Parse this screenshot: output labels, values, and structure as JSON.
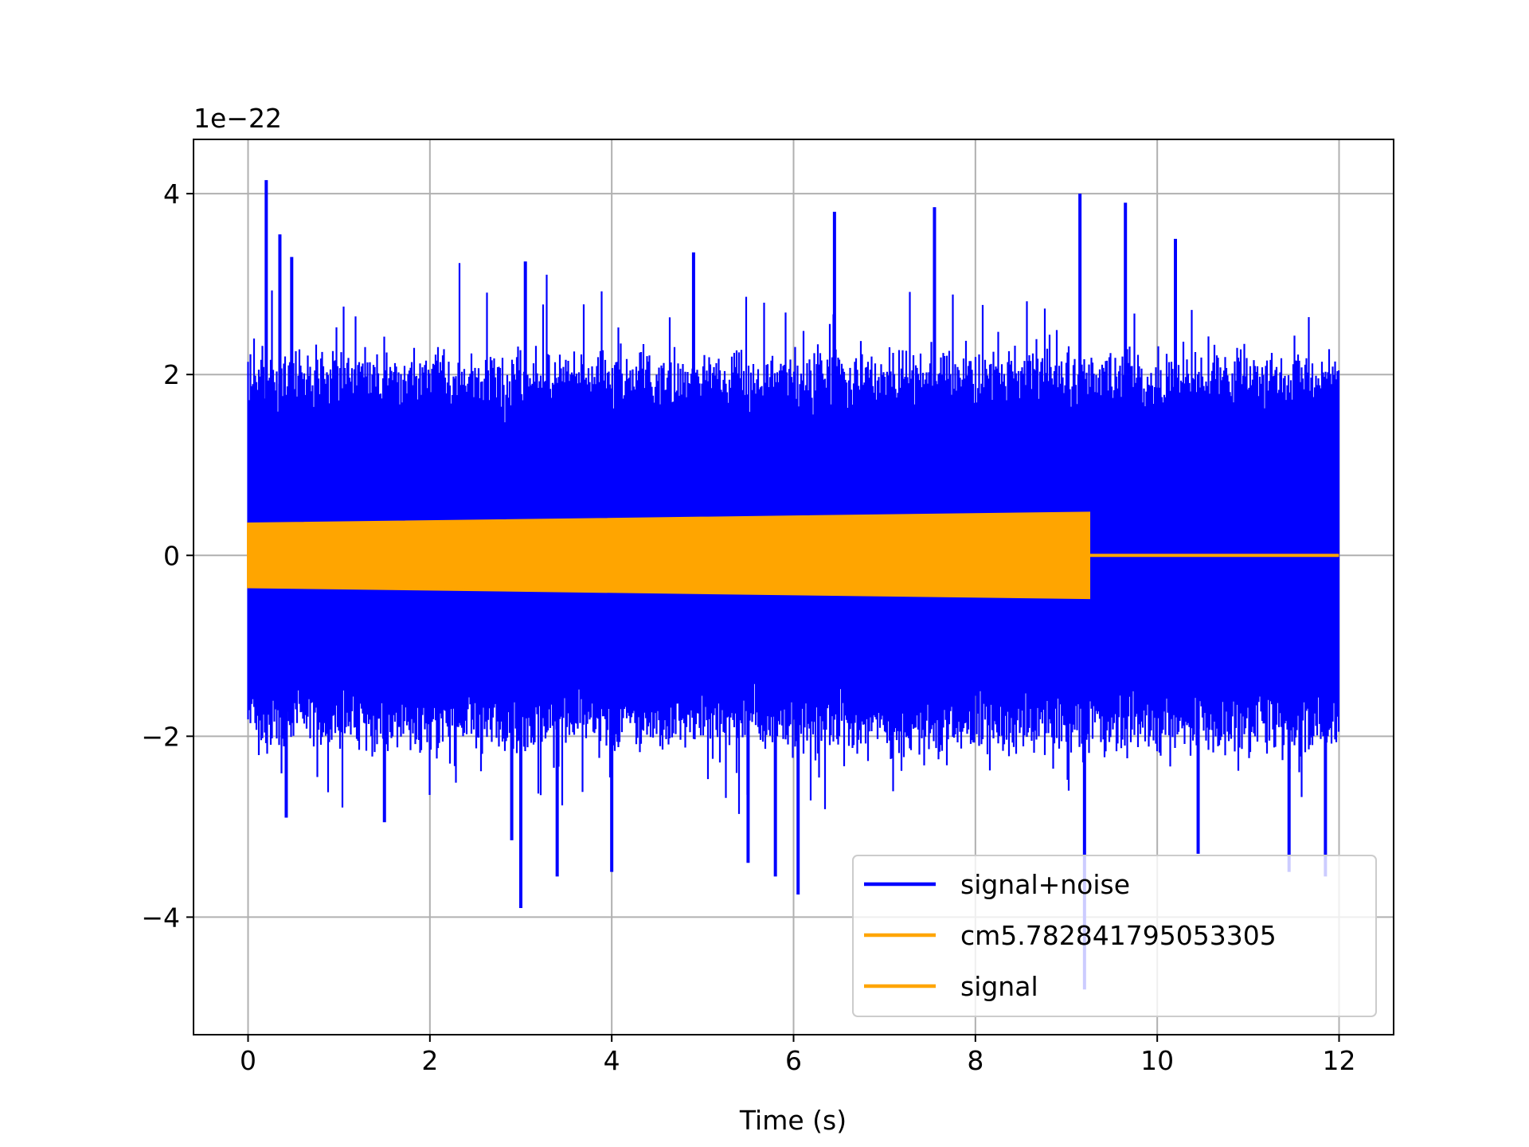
{
  "chart_data": {
    "type": "line",
    "title": "",
    "xlabel": "Time (s)",
    "ylabel": "",
    "offset_text": "1e−22",
    "xlim": [
      -0.6,
      12.6
    ],
    "ylim": [
      -5.3,
      4.6
    ],
    "x_ticks": [
      0,
      2,
      4,
      6,
      8,
      10,
      12
    ],
    "x_tick_labels": [
      "0",
      "2",
      "4",
      "6",
      "8",
      "10",
      "12"
    ],
    "y_ticks": [
      -4,
      -2,
      0,
      2,
      4
    ],
    "y_tick_labels": [
      "−4",
      "−2",
      "0",
      "2",
      "4"
    ],
    "grid": true,
    "legend_position": "lower-right",
    "legend": [
      {
        "label": "signal+noise",
        "color": "#0000ff"
      },
      {
        "label": "cm5.782841795053305",
        "color": "#ffa500"
      },
      {
        "label": "signal",
        "color": "#ffa500"
      }
    ],
    "series": [
      {
        "name": "signal+noise",
        "color": "#0000ff",
        "x_range": [
          0,
          12
        ],
        "typical_envelope": [
          -1.9,
          2.0
        ],
        "peaks": [
          {
            "x": 0.2,
            "y": 4.15
          },
          {
            "x": 0.35,
            "y": 3.55
          },
          {
            "x": 0.48,
            "y": 3.3
          },
          {
            "x": 3.05,
            "y": 3.25
          },
          {
            "x": 4.9,
            "y": 3.35
          },
          {
            "x": 6.45,
            "y": 3.8
          },
          {
            "x": 7.55,
            "y": 3.85
          },
          {
            "x": 9.15,
            "y": 4.0
          },
          {
            "x": 9.65,
            "y": 3.9
          },
          {
            "x": 10.2,
            "y": 3.5
          }
        ],
        "troughs": [
          {
            "x": 0.42,
            "y": -2.9
          },
          {
            "x": 1.5,
            "y": -2.95
          },
          {
            "x": 2.9,
            "y": -3.15
          },
          {
            "x": 3.0,
            "y": -3.9
          },
          {
            "x": 3.4,
            "y": -3.55
          },
          {
            "x": 4.0,
            "y": -3.5
          },
          {
            "x": 5.5,
            "y": -3.4
          },
          {
            "x": 5.8,
            "y": -3.55
          },
          {
            "x": 6.05,
            "y": -3.75
          },
          {
            "x": 9.2,
            "y": -4.8
          },
          {
            "x": 10.45,
            "y": -3.3
          },
          {
            "x": 11.45,
            "y": -3.5
          },
          {
            "x": 11.85,
            "y": -3.55
          }
        ]
      },
      {
        "name": "cm5.782841795053305",
        "color": "#ffa500",
        "x_range": [
          0,
          9.25
        ],
        "amplitude_start": 0.35,
        "amplitude_end": 0.47
      },
      {
        "name": "signal",
        "color": "#ffa500",
        "x_range": [
          0,
          12
        ],
        "amplitude_start": 0.35,
        "amplitude_end": 0.47,
        "active_until": 9.25
      }
    ]
  }
}
